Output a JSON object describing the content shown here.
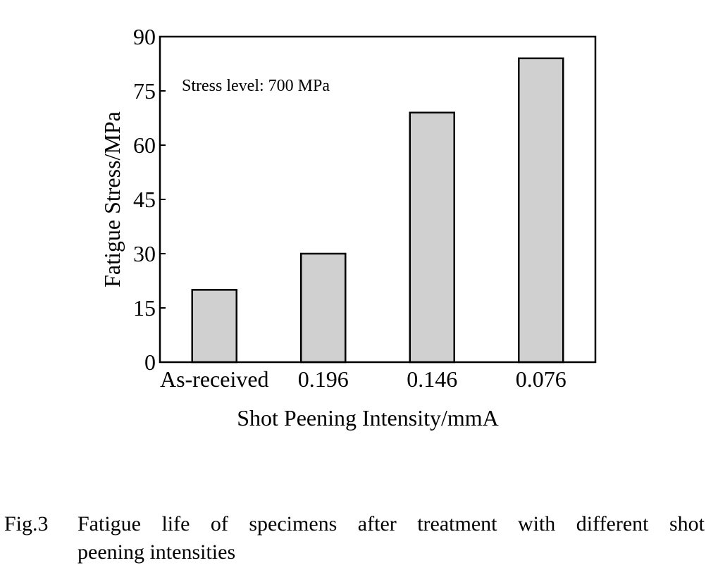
{
  "chart_data": {
    "type": "bar",
    "categories": [
      "As-received",
      "0.196",
      "0.146",
      "0.076"
    ],
    "values": [
      20,
      30,
      69,
      84
    ],
    "xlabel": "Shot Peening Intensity/mmA",
    "ylabel": "Fatigue Stress/MPa",
    "annotation": "Stress level: 700 MPa",
    "ylim": [
      0,
      90
    ],
    "yticks": [
      "0",
      "15",
      "30",
      "45",
      "60",
      "75",
      "90"
    ],
    "grid": false,
    "bar_color": "#d0d0d0",
    "edge_color": "#000000"
  },
  "caption": {
    "label": "Fig.3",
    "line1": "Fatigue life of specimens after treatment with different shot",
    "line2": "peening intensities"
  }
}
